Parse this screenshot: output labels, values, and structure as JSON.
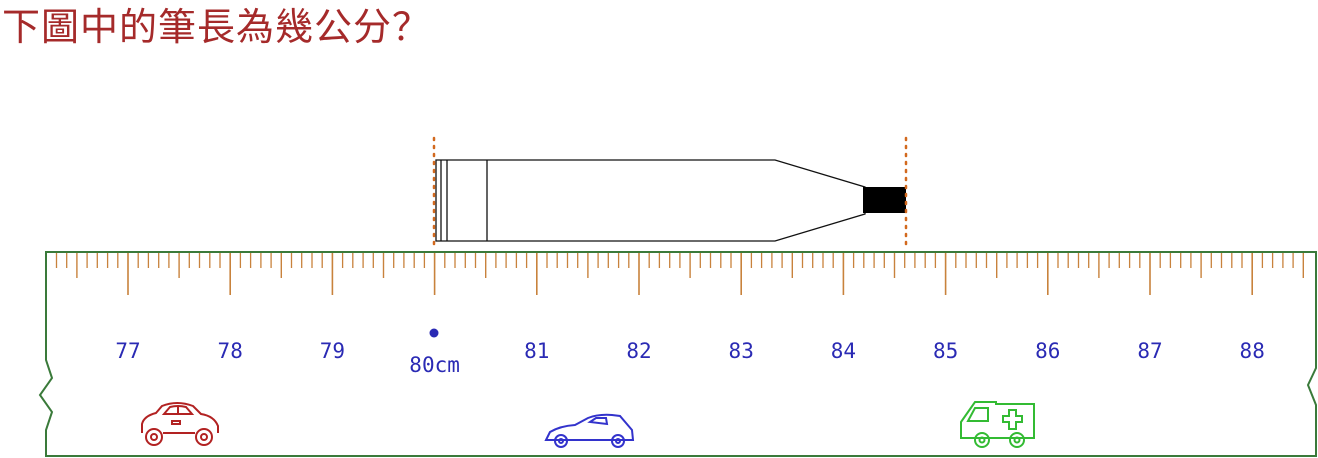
{
  "question": "下圖中的筆長為幾公分？",
  "ruler": {
    "start_cm": 77,
    "end_cm": 88,
    "labels": [
      "77",
      "78",
      "79",
      "80cm",
      "81",
      "82",
      "83",
      "84",
      "85",
      "86",
      "87",
      "88"
    ],
    "origin_label": "80cm"
  },
  "pen": {
    "start_cm": 80.0,
    "end_cm": 84.6
  },
  "decorations": [
    "car-icon",
    "sports-car-icon",
    "ambulance-icon"
  ],
  "colors": {
    "title": "#a52a2a",
    "ticks": "#c8823c",
    "ruler_border": "#3a7a3a",
    "numbers": "#2a2ab4",
    "guide_lines": "#d2691e",
    "car": "#b22222",
    "sports_car": "#3333cc",
    "ambulance": "#33bb33"
  }
}
